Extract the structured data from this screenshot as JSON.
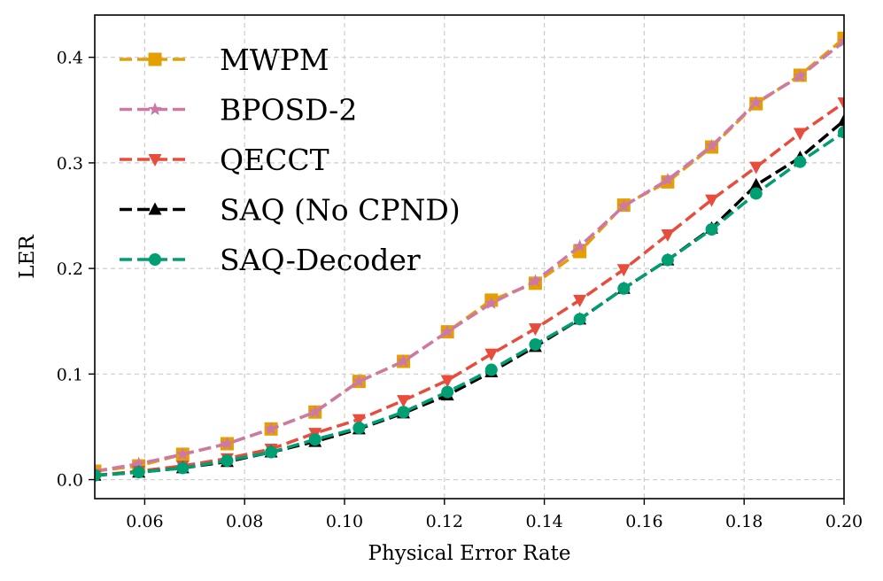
{
  "chart_data": {
    "type": "line",
    "xlabel": "Physical Error Rate",
    "ylabel": "LER",
    "xlim": [
      0.05,
      0.2
    ],
    "ylim": [
      -0.018,
      0.44
    ],
    "xticks": [
      "0.06",
      "0.08",
      "0.10",
      "0.12",
      "0.14",
      "0.16",
      "0.18",
      "0.20"
    ],
    "yticks": [
      "0.0",
      "0.1",
      "0.2",
      "0.3",
      "0.4"
    ],
    "grid": true,
    "legend_position": "upper-left",
    "x": [
      0.05,
      0.0588,
      0.0676,
      0.0765,
      0.0853,
      0.0941,
      0.1029,
      0.1118,
      0.1206,
      0.1294,
      0.1382,
      0.1471,
      0.1559,
      0.1647,
      0.1735,
      0.1824,
      0.1912,
      0.2
    ],
    "series": [
      {
        "name": "MWPM",
        "color": "#E69F00",
        "marker": "square",
        "values": [
          0.008,
          0.013,
          0.024,
          0.034,
          0.048,
          0.064,
          0.093,
          0.112,
          0.14,
          0.17,
          0.186,
          0.216,
          0.26,
          0.282,
          0.315,
          0.356,
          0.383,
          0.418
        ]
      },
      {
        "name": "BPOSD-2",
        "color": "#CC79A7",
        "marker": "star",
        "values": [
          0.008,
          0.015,
          0.024,
          0.034,
          0.048,
          0.064,
          0.093,
          0.112,
          0.14,
          0.167,
          0.188,
          0.221,
          0.259,
          0.284,
          0.316,
          0.357,
          0.382,
          0.415
        ]
      },
      {
        "name": "QECCT",
        "color": "#E74C3C",
        "marker": "triangle-down",
        "values": [
          0.004,
          0.008,
          0.013,
          0.02,
          0.029,
          0.044,
          0.057,
          0.075,
          0.094,
          0.119,
          0.143,
          0.17,
          0.199,
          0.232,
          0.265,
          0.296,
          0.328,
          0.357
        ]
      },
      {
        "name": "SAQ (No CPND)",
        "color": "#000000",
        "marker": "triangle-up",
        "values": [
          0.004,
          0.007,
          0.011,
          0.017,
          0.026,
          0.036,
          0.048,
          0.063,
          0.08,
          0.102,
          0.126,
          0.152,
          0.181,
          0.208,
          0.238,
          0.279,
          0.305,
          0.34
        ]
      },
      {
        "name": "SAQ-Decoder",
        "color": "#009E73",
        "marker": "circle",
        "values": [
          0.004,
          0.007,
          0.011,
          0.018,
          0.026,
          0.038,
          0.049,
          0.064,
          0.083,
          0.104,
          0.128,
          0.152,
          0.181,
          0.208,
          0.237,
          0.271,
          0.301,
          0.329
        ]
      }
    ]
  }
}
